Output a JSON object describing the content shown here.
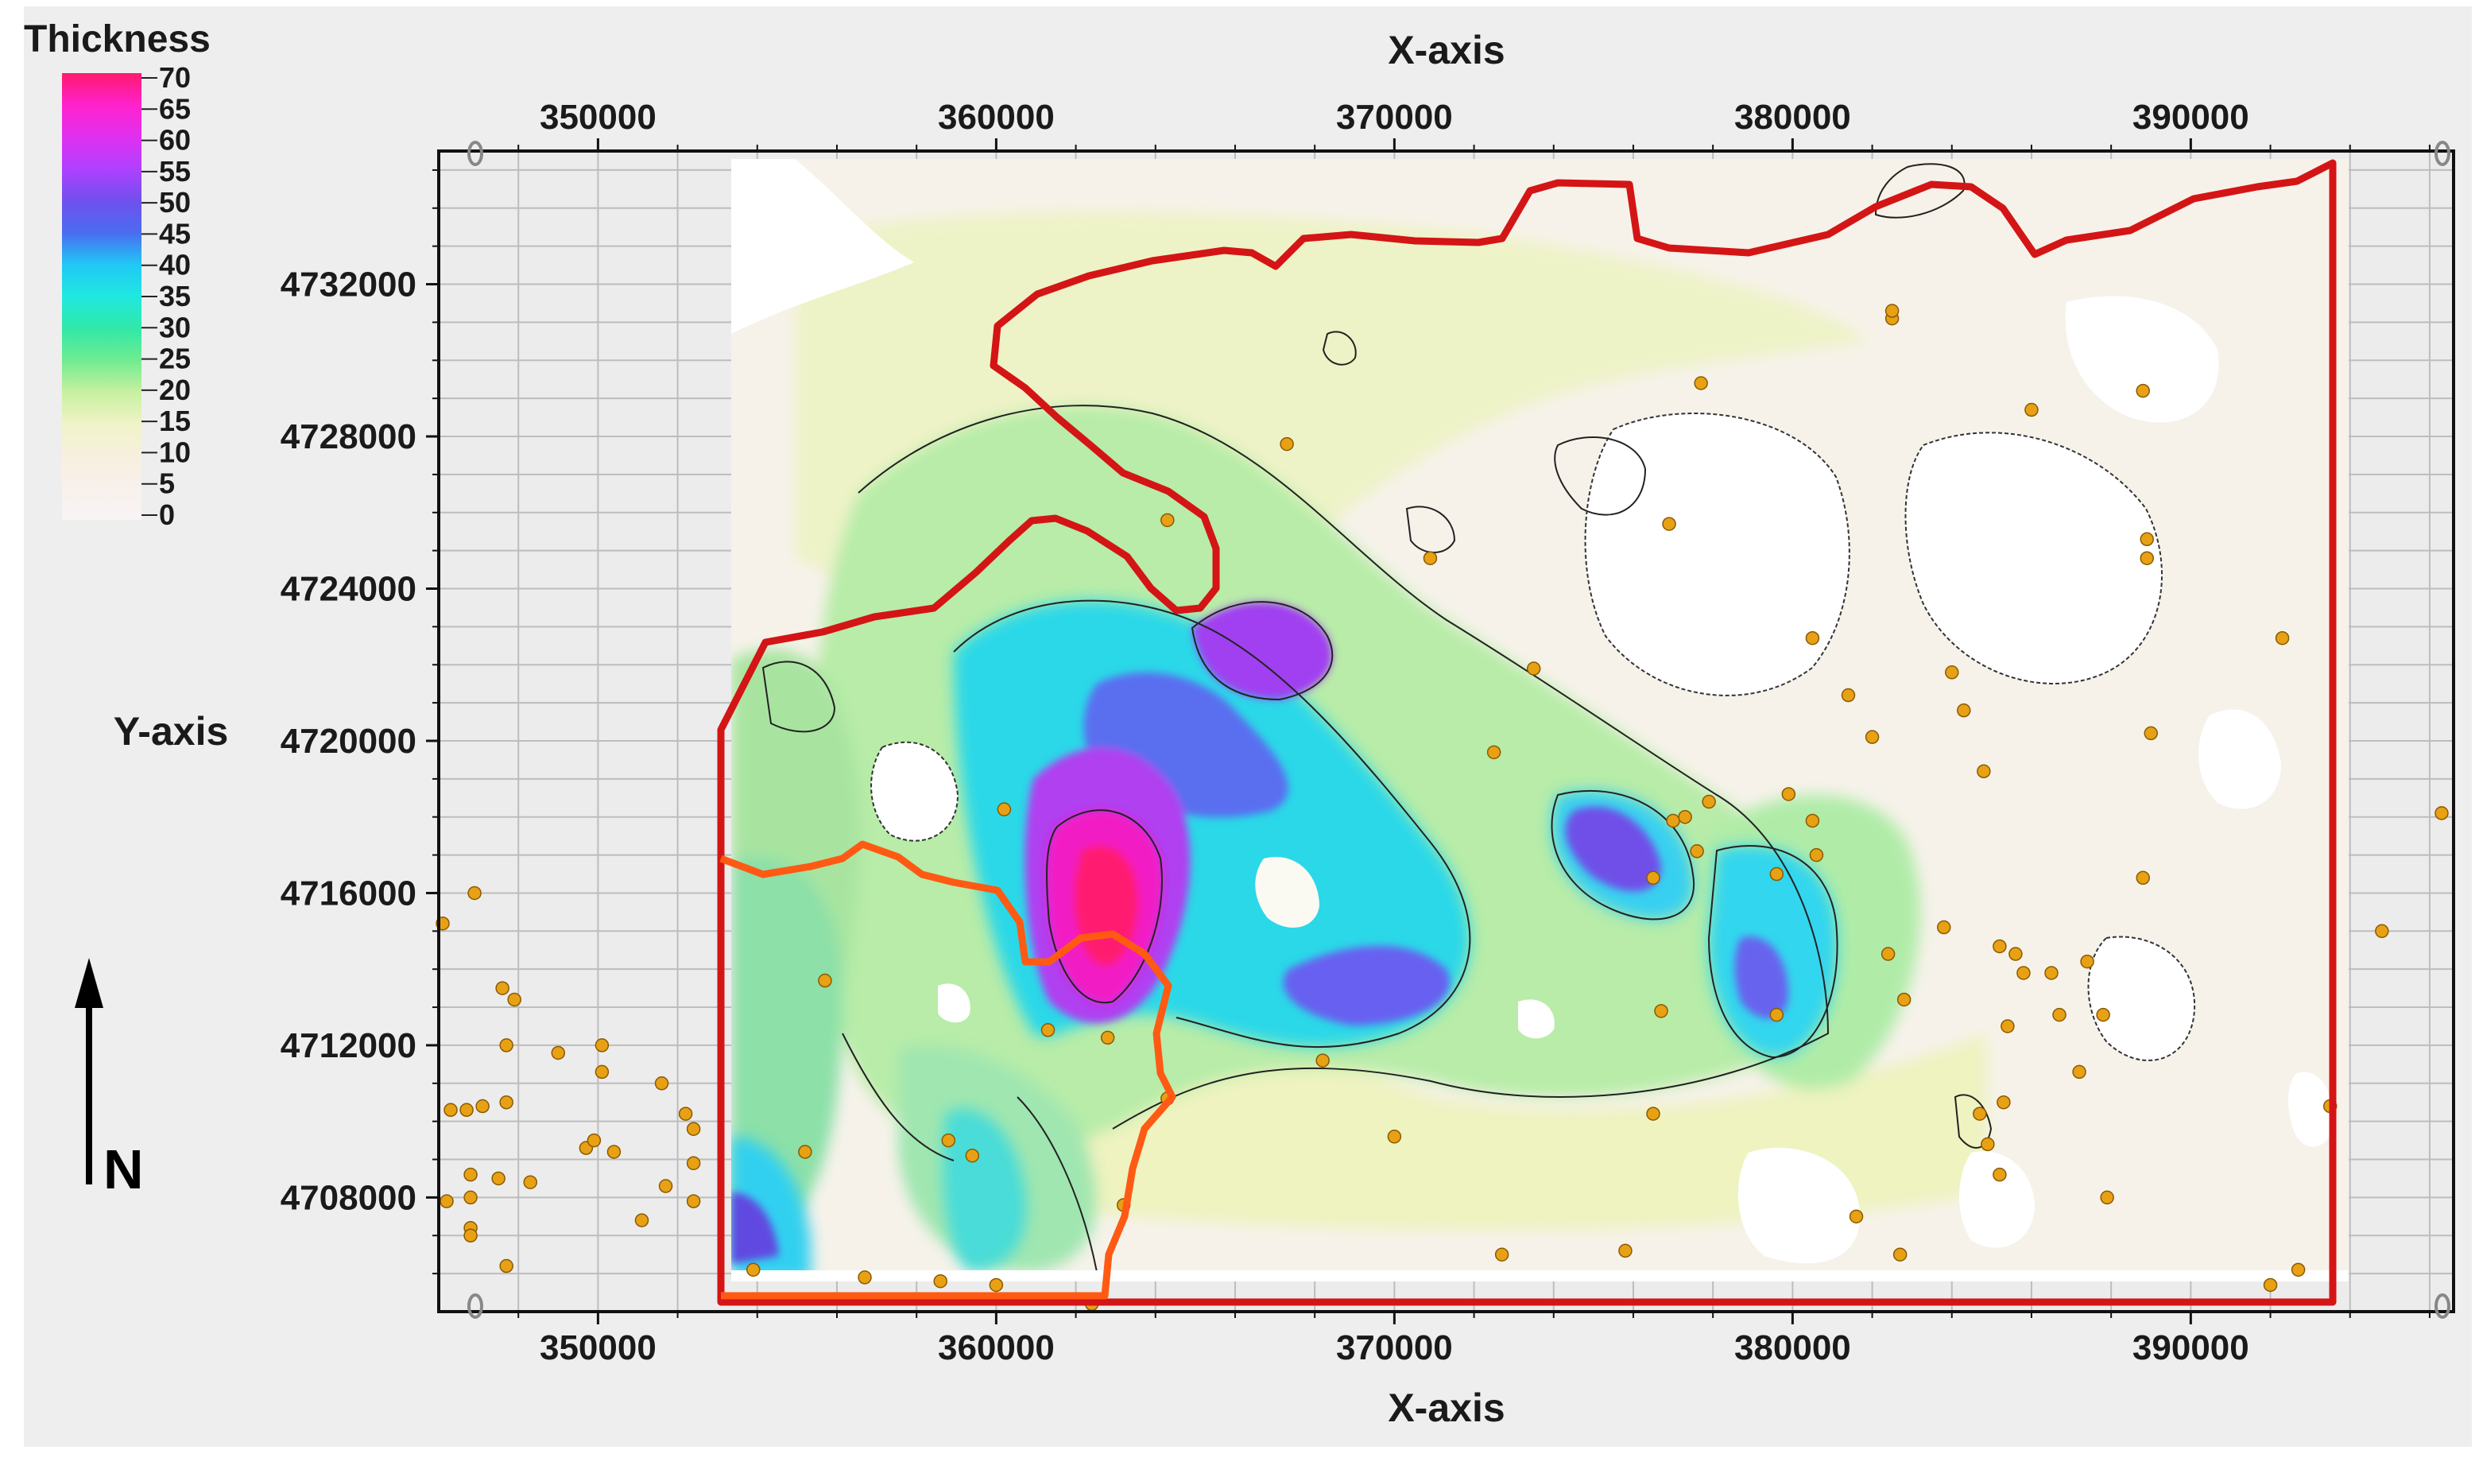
{
  "legend": {
    "title": "Thickness",
    "labels": [
      "70",
      "65",
      "60",
      "55",
      "50",
      "45",
      "40",
      "35",
      "30",
      "25",
      "20",
      "15",
      "10",
      "5",
      "0"
    ],
    "stops": [
      "#ff1a6e",
      "#ff22cc",
      "#e030f0",
      "#b040ff",
      "#7050ee",
      "#4a6cf0",
      "#20c8f5",
      "#20e8e0",
      "#30e8a8",
      "#70ec90",
      "#c8f0a0",
      "#f0f4c8",
      "#f7efdf",
      "#f8f1ec",
      "#f8f4f4"
    ]
  },
  "axes": {
    "x_label_top": "X-axis",
    "x_label_bottom": "X-axis",
    "y_label": "Y-axis",
    "x_ticks": [
      "350000",
      "360000",
      "370000",
      "380000",
      "390000"
    ],
    "y_ticks": [
      "4732000",
      "4728000",
      "4724000",
      "4720000",
      "4716000",
      "4712000",
      "4708000"
    ],
    "x_range": [
      346000,
      396600
    ],
    "y_range": [
      4705000,
      4735500
    ]
  },
  "north_arrow": {
    "label": "N"
  },
  "colors": {
    "frame_background": "#eeeeee",
    "study_boundary": "#d41515",
    "sub_area_boundary": "#ff5a14",
    "well_points": "#e8a114",
    "contour_lines": "#222222"
  },
  "wells": [
    [
      346100,
      4715200
    ],
    [
      346900,
      4716000
    ],
    [
      347600,
      4713500
    ],
    [
      347900,
      4713200
    ],
    [
      347700,
      4712000
    ],
    [
      349000,
      4711800
    ],
    [
      350100,
      4712000
    ],
    [
      350100,
      4711300
    ],
    [
      351600,
      4711000
    ],
    [
      352200,
      4710200
    ],
    [
      352400,
      4709800
    ],
    [
      352400,
      4708900
    ],
    [
      352400,
      4707900
    ],
    [
      346300,
      4710300
    ],
    [
      346700,
      4710300
    ],
    [
      347100,
      4710400
    ],
    [
      347700,
      4710500
    ],
    [
      346200,
      4707900
    ],
    [
      346800,
      4708600
    ],
    [
      346800,
      4708000
    ],
    [
      346800,
      4707200
    ],
    [
      346800,
      4707000
    ],
    [
      347500,
      4708500
    ],
    [
      348300,
      4708400
    ],
    [
      347700,
      4706200
    ],
    [
      349700,
      4709300
    ],
    [
      349900,
      4709500
    ],
    [
      350400,
      4709200
    ],
    [
      351100,
      4707400
    ],
    [
      351700,
      4708300
    ],
    [
      353900,
      4706100
    ],
    [
      355200,
      4709200
    ],
    [
      356700,
      4705900
    ],
    [
      355700,
      4713700
    ],
    [
      358600,
      4705800
    ],
    [
      360000,
      4705700
    ],
    [
      358800,
      4709500
    ],
    [
      359400,
      4709100
    ],
    [
      360200,
      4718200
    ],
    [
      361300,
      4712400
    ],
    [
      362800,
      4712200
    ],
    [
      362400,
      4705200
    ],
    [
      363200,
      4707800
    ],
    [
      364300,
      4710600
    ],
    [
      364300,
      4725800
    ],
    [
      367300,
      4727800
    ],
    [
      368200,
      4711600
    ],
    [
      370000,
      4709600
    ],
    [
      370900,
      4724800
    ],
    [
      372500,
      4719700
    ],
    [
      373500,
      4721900
    ],
    [
      372700,
      4706500
    ],
    [
      375800,
      4706600
    ],
    [
      376500,
      4716400
    ],
    [
      376700,
      4712900
    ],
    [
      377000,
      4717900
    ],
    [
      377300,
      4718000
    ],
    [
      377600,
      4717100
    ],
    [
      377900,
      4718400
    ],
    [
      376900,
      4725700
    ],
    [
      377700,
      4729400
    ],
    [
      376500,
      4710200
    ],
    [
      379600,
      4712800
    ],
    [
      379600,
      4716500
    ],
    [
      379900,
      4718600
    ],
    [
      380500,
      4717900
    ],
    [
      380600,
      4717000
    ],
    [
      380500,
      4722700
    ],
    [
      381400,
      4721200
    ],
    [
      382000,
      4720100
    ],
    [
      382400,
      4714400
    ],
    [
      382800,
      4713200
    ],
    [
      383800,
      4715100
    ],
    [
      384000,
      4721800
    ],
    [
      384300,
      4720800
    ],
    [
      384800,
      4719200
    ],
    [
      385200,
      4714600
    ],
    [
      385600,
      4714400
    ],
    [
      385800,
      4713900
    ],
    [
      385400,
      4712500
    ],
    [
      385300,
      4710500
    ],
    [
      384700,
      4710200
    ],
    [
      384900,
      4709400
    ],
    [
      385200,
      4708600
    ],
    [
      386500,
      4713900
    ],
    [
      386700,
      4712800
    ],
    [
      387200,
      4711300
    ],
    [
      387400,
      4714200
    ],
    [
      387800,
      4712800
    ],
    [
      387900,
      4708000
    ],
    [
      388800,
      4716400
    ],
    [
      389000,
      4720200
    ],
    [
      388800,
      4729200
    ],
    [
      388900,
      4725300
    ],
    [
      388900,
      4724800
    ],
    [
      386000,
      4728700
    ],
    [
      382500,
      4731100
    ],
    [
      382500,
      4731300
    ],
    [
      381600,
      4707500
    ],
    [
      382700,
      4706500
    ],
    [
      392000,
      4705700
    ],
    [
      392700,
      4706100
    ],
    [
      392300,
      4722700
    ],
    [
      393500,
      4710400
    ],
    [
      394800,
      4715000
    ],
    [
      396300,
      4718100
    ]
  ]
}
